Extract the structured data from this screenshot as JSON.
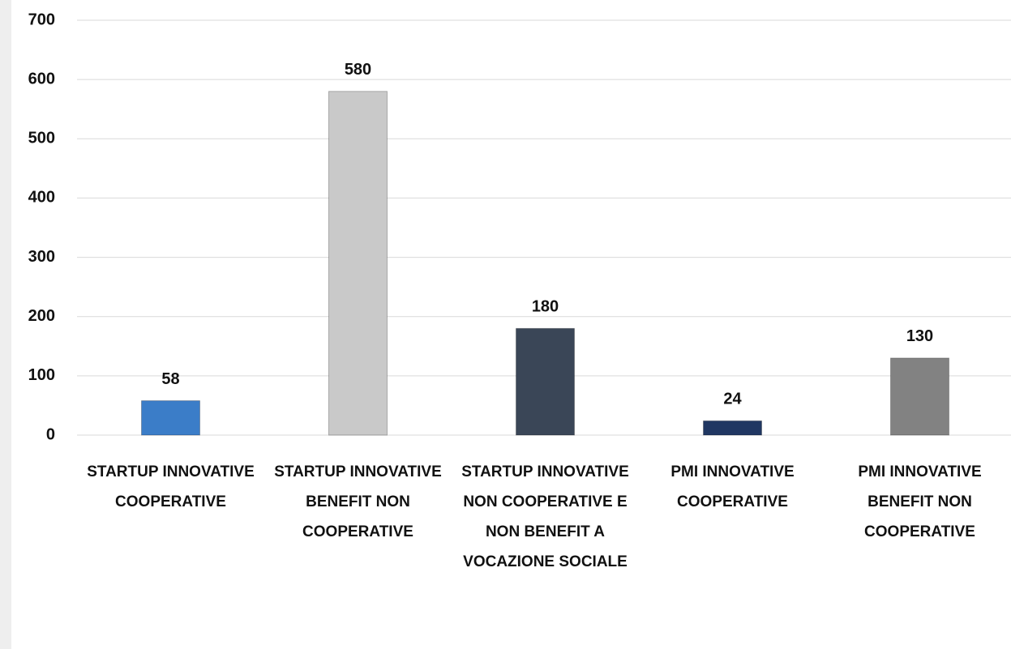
{
  "chart_data": {
    "type": "bar",
    "categories": [
      "STARTUP INNOVATIVE COOPERATIVE",
      "STARTUP INNOVATIVE BENEFIT NON COOPERATIVE",
      "STARTUP INNOVATIVE NON COOPERATIVE E NON BENEFIT A VOCAZIONE SOCIALE",
      "PMI INNOVATIVE COOPERATIVE",
      "PMI INNOVATIVE BENEFIT NON COOPERATIVE"
    ],
    "values": [
      58,
      580,
      180,
      24,
      130
    ],
    "colors": [
      "#3b7dc8",
      "#c9c9c9",
      "#3a4657",
      "#203762",
      "#828282"
    ],
    "ylim": [
      0,
      700
    ],
    "yticks": [
      0,
      100,
      200,
      300,
      400,
      500,
      600,
      700
    ],
    "grid": true
  }
}
